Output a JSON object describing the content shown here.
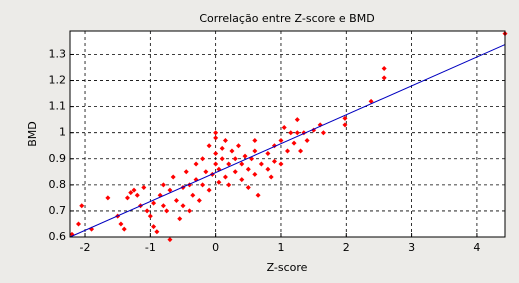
{
  "chart_data": {
    "type": "scatter",
    "title": "Correlação entre Z-score e BMD",
    "xlabel": "Z-score",
    "ylabel": "BMD",
    "color": "#ff0000",
    "x": [
      -2.2,
      -2.1,
      -2.05,
      -1.9,
      -1.65,
      -1.5,
      -1.45,
      -1.4,
      -1.35,
      -1.3,
      -1.25,
      -1.2,
      -1.15,
      -1.1,
      -1.05,
      -1.0,
      -0.95,
      -0.95,
      -0.9,
      -0.85,
      -0.8,
      -0.8,
      -0.75,
      -0.7,
      -0.7,
      -0.65,
      -0.6,
      -0.55,
      -0.5,
      -0.5,
      -0.45,
      -0.4,
      -0.4,
      -0.35,
      -0.3,
      -0.3,
      -0.25,
      -0.2,
      -0.2,
      -0.15,
      -0.1,
      -0.1,
      -0.05,
      0,
      0,
      0,
      0,
      0.05,
      0.05,
      0.1,
      0.1,
      0.15,
      0.15,
      0.2,
      0.2,
      0.25,
      0.3,
      0.3,
      0.35,
      0.4,
      0.4,
      0.45,
      0.5,
      0.5,
      0.55,
      0.6,
      0.6,
      0.6,
      0.65,
      0.7,
      0.8,
      0.8,
      0.85,
      0.9,
      0.9,
      1.0,
      1.0,
      1.05,
      1.1,
      1.15,
      1.2,
      1.25,
      1.25,
      1.3,
      1.35,
      1.4,
      1.5,
      1.6,
      1.65,
      1.98,
      1.98,
      2.38,
      2.58,
      2.58,
      4.43
    ],
    "values": [
      0.61,
      0.65,
      0.72,
      0.63,
      0.75,
      0.68,
      0.65,
      0.63,
      0.75,
      0.77,
      0.78,
      0.76,
      0.72,
      0.79,
      0.7,
      0.68,
      0.73,
      0.64,
      0.62,
      0.76,
      0.72,
      0.8,
      0.7,
      0.78,
      0.59,
      0.83,
      0.74,
      0.67,
      0.79,
      0.72,
      0.85,
      0.8,
      0.7,
      0.76,
      0.82,
      0.88,
      0.74,
      0.8,
      0.9,
      0.85,
      0.78,
      0.95,
      0.84,
      0.88,
      0.92,
      0.98,
      1.0,
      0.81,
      0.86,
      0.94,
      0.9,
      0.83,
      0.97,
      0.88,
      0.8,
      0.93,
      0.85,
      0.9,
      0.95,
      0.82,
      0.88,
      0.91,
      0.79,
      0.86,
      0.9,
      0.93,
      0.97,
      0.84,
      0.76,
      0.88,
      0.92,
      0.86,
      0.83,
      0.95,
      0.89,
      0.97,
      0.88,
      1.02,
      0.93,
      1.0,
      0.96,
      1.0,
      1.05,
      0.93,
      1.0,
      0.97,
      1.01,
      1.03,
      1.0,
      1.055,
      1.03,
      1.12,
      1.21,
      1.246,
      1.38
    ],
    "fit": {
      "x": [
        -2.23,
        4.43
      ],
      "values": [
        0.6,
        1.338
      ],
      "color": "#0000c0"
    },
    "xlim": [
      -2.23,
      4.43
    ],
    "ylim": [
      0.6,
      1.39
    ],
    "xticks": [
      -2,
      -1,
      0,
      1,
      2,
      3,
      4
    ],
    "yticks": [
      0.6,
      0.7,
      0.8,
      0.9,
      1,
      1.1,
      1.2,
      1.3
    ],
    "grid": true
  }
}
